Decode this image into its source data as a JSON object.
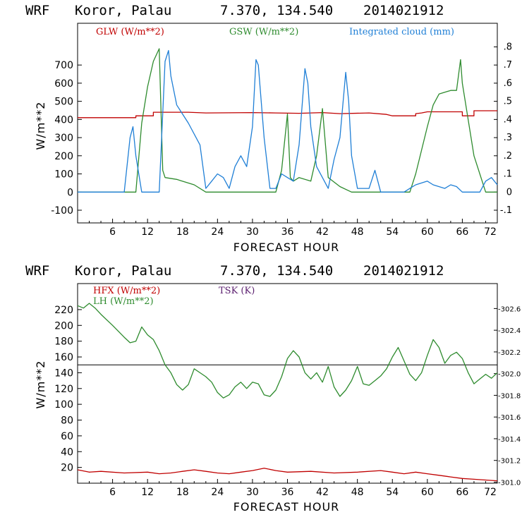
{
  "colors": {
    "red": "#c00000",
    "green": "#2e8b2e",
    "blue": "#1f7fd6",
    "purple": "#5a1e6e",
    "black": "#000000"
  },
  "chart_data": [
    {
      "type": "line",
      "header": {
        "model": "WRF",
        "location": "Koror, Palau",
        "coords": "7.370, 134.540",
        "date": "2014021912"
      },
      "xlabel": "FORECAST HOUR",
      "ylabel": "W/m**2",
      "xlim": [
        0,
        72
      ],
      "ylim": [
        -170,
        930
      ],
      "xticks": [
        "6",
        "12",
        "18",
        "24",
        "30",
        "36",
        "42",
        "48",
        "54",
        "60",
        "66",
        "72"
      ],
      "yticks": [
        "-100",
        "0",
        "100",
        "200",
        "300",
        "400",
        "500",
        "600",
        "700"
      ],
      "y2ticks": [
        "-.1",
        "0",
        ".1",
        ".2",
        ".3",
        ".4",
        ".5",
        ".6",
        ".7",
        ".8"
      ],
      "y2lim": [
        -0.17,
        0.93
      ],
      "series": [
        {
          "name": "GLW (W/m**2)",
          "color": "red",
          "axis": "left",
          "points": [
            [
              0,
              410
            ],
            [
              10,
              410
            ],
            [
              10,
              420
            ],
            [
              13,
              420
            ],
            [
              13,
              440
            ],
            [
              19,
              440
            ],
            [
              22,
              436
            ],
            [
              30,
              438
            ],
            [
              34,
              436
            ],
            [
              38,
              434
            ],
            [
              42,
              438
            ],
            [
              45,
              432
            ],
            [
              50,
              436
            ],
            [
              53,
              428
            ],
            [
              54,
              420
            ],
            [
              58,
              420
            ],
            [
              58,
              432
            ],
            [
              59,
              436
            ],
            [
              60,
              442
            ],
            [
              66,
              442
            ],
            [
              66,
              420
            ],
            [
              68,
              420
            ],
            [
              68,
              448
            ],
            [
              72,
              448
            ]
          ]
        },
        {
          "name": "GSW (W/m**2)",
          "color": "green",
          "axis": "left",
          "points": [
            [
              0,
              0
            ],
            [
              10,
              0
            ],
            [
              11,
              380
            ],
            [
              12,
              580
            ],
            [
              13,
              720
            ],
            [
              14,
              790
            ],
            [
              14.6,
              120
            ],
            [
              15,
              80
            ],
            [
              17,
              70
            ],
            [
              20,
              40
            ],
            [
              22,
              0
            ],
            [
              34,
              0
            ],
            [
              35,
              120
            ],
            [
              36,
              430
            ],
            [
              36.5,
              80
            ],
            [
              37,
              60
            ],
            [
              38,
              80
            ],
            [
              40,
              60
            ],
            [
              41,
              200
            ],
            [
              42,
              460
            ],
            [
              43,
              80
            ],
            [
              45,
              30
            ],
            [
              47,
              0
            ],
            [
              57,
              0
            ],
            [
              58,
              100
            ],
            [
              60,
              360
            ],
            [
              61,
              480
            ],
            [
              62,
              540
            ],
            [
              64,
              560
            ],
            [
              65,
              560
            ],
            [
              65.7,
              730
            ],
            [
              66,
              600
            ],
            [
              68,
              200
            ],
            [
              70,
              0
            ],
            [
              72,
              0
            ]
          ]
        },
        {
          "name": "Integrated cloud (mm)",
          "color": "blue",
          "axis": "right",
          "points": [
            [
              0,
              0
            ],
            [
              8,
              0
            ],
            [
              9,
              0.3
            ],
            [
              9.5,
              0.36
            ],
            [
              10,
              0.2
            ],
            [
              11,
              0
            ],
            [
              14,
              0
            ],
            [
              15,
              0.72
            ],
            [
              15.6,
              0.78
            ],
            [
              16,
              0.64
            ],
            [
              17,
              0.48
            ],
            [
              19,
              0.38
            ],
            [
              21,
              0.26
            ],
            [
              22,
              0.02
            ],
            [
              23,
              0.06
            ],
            [
              24,
              0.1
            ],
            [
              25,
              0.08
            ],
            [
              26,
              0.02
            ],
            [
              27,
              0.14
            ],
            [
              28,
              0.2
            ],
            [
              29,
              0.14
            ],
            [
              30,
              0.36
            ],
            [
              30.6,
              0.73
            ],
            [
              31,
              0.7
            ],
            [
              32,
              0.3
            ],
            [
              33,
              0.02
            ],
            [
              34,
              0.02
            ],
            [
              35,
              0.1
            ],
            [
              36,
              0.08
            ],
            [
              37,
              0.06
            ],
            [
              38,
              0.26
            ],
            [
              39,
              0.68
            ],
            [
              39.5,
              0.6
            ],
            [
              40,
              0.36
            ],
            [
              41,
              0.14
            ],
            [
              42,
              0.08
            ],
            [
              43,
              0.02
            ],
            [
              44,
              0.18
            ],
            [
              45,
              0.3
            ],
            [
              46,
              0.66
            ],
            [
              46.5,
              0.5
            ],
            [
              47,
              0.2
            ],
            [
              48,
              0.02
            ],
            [
              49,
              0.02
            ],
            [
              50,
              0.02
            ],
            [
              51,
              0.12
            ],
            [
              52,
              0
            ],
            [
              56,
              0
            ],
            [
              57,
              0.02
            ],
            [
              58,
              0.04
            ],
            [
              60,
              0.06
            ],
            [
              61,
              0.04
            ],
            [
              63,
              0.02
            ],
            [
              64,
              0.04
            ],
            [
              65,
              0.03
            ],
            [
              66,
              0
            ],
            [
              69,
              0
            ],
            [
              70,
              0.06
            ],
            [
              71,
              0.08
            ],
            [
              72,
              0.04
            ]
          ]
        }
      ]
    },
    {
      "type": "line",
      "header": {
        "model": "WRF",
        "location": "Koror, Palau",
        "coords": "7.370, 134.540",
        "date": "2014021912"
      },
      "xlabel": "FORECAST HOUR",
      "ylabel": "W/m**2",
      "xlim": [
        0,
        72
      ],
      "ylim": [
        0,
        253
      ],
      "xticks": [
        "6",
        "12",
        "18",
        "24",
        "30",
        "36",
        "42",
        "48",
        "54",
        "60",
        "66",
        "72"
      ],
      "yticks": [
        "20",
        "40",
        "60",
        "80",
        "100",
        "120",
        "140",
        "160",
        "180",
        "200",
        "220"
      ],
      "y2ticks": [
        "301.0",
        "301.2",
        "301.4",
        "301.6",
        "301.8",
        "302.0",
        "302.2",
        "302.4",
        "302.6"
      ],
      "y2lim": [
        300.99,
        302.83
      ],
      "series": [
        {
          "name": "HFX (W/m**2)",
          "color": "red",
          "axis": "left",
          "points": [
            [
              0,
              17
            ],
            [
              2,
              14
            ],
            [
              4,
              15
            ],
            [
              8,
              13
            ],
            [
              12,
              14
            ],
            [
              14,
              12
            ],
            [
              16,
              13
            ],
            [
              18,
              15
            ],
            [
              20,
              17
            ],
            [
              22,
              15
            ],
            [
              24,
              13
            ],
            [
              26,
              12
            ],
            [
              28,
              14
            ],
            [
              30,
              16
            ],
            [
              32,
              19
            ],
            [
              34,
              16
            ],
            [
              36,
              14
            ],
            [
              40,
              15
            ],
            [
              44,
              13
            ],
            [
              48,
              14
            ],
            [
              52,
              16
            ],
            [
              54,
              14
            ],
            [
              56,
              12
            ],
            [
              58,
              14
            ],
            [
              60,
              12
            ],
            [
              62,
              10
            ],
            [
              64,
              8
            ],
            [
              66,
              6
            ],
            [
              68,
              5
            ],
            [
              70,
              4
            ],
            [
              72,
              3
            ]
          ]
        },
        {
          "name": "LH  (W/m**2)",
          "color": "green",
          "axis": "left",
          "points": [
            [
              0,
              225
            ],
            [
              1,
              222
            ],
            [
              2,
              228
            ],
            [
              3,
              222
            ],
            [
              4,
              214
            ],
            [
              6,
              200
            ],
            [
              8,
              185
            ],
            [
              9,
              178
            ],
            [
              10,
              180
            ],
            [
              11,
              198
            ],
            [
              12,
              188
            ],
            [
              13,
              182
            ],
            [
              14,
              168
            ],
            [
              15,
              150
            ],
            [
              16,
              140
            ],
            [
              17,
              125
            ],
            [
              18,
              118
            ],
            [
              19,
              125
            ],
            [
              20,
              145
            ],
            [
              21,
              140
            ],
            [
              22,
              135
            ],
            [
              23,
              128
            ],
            [
              24,
              115
            ],
            [
              25,
              108
            ],
            [
              26,
              112
            ],
            [
              27,
              122
            ],
            [
              28,
              128
            ],
            [
              29,
              120
            ],
            [
              30,
              128
            ],
            [
              31,
              126
            ],
            [
              32,
              112
            ],
            [
              33,
              110
            ],
            [
              34,
              118
            ],
            [
              35,
              135
            ],
            [
              36,
              158
            ],
            [
              37,
              168
            ],
            [
              38,
              160
            ],
            [
              39,
              140
            ],
            [
              40,
              132
            ],
            [
              41,
              140
            ],
            [
              42,
              128
            ],
            [
              43,
              148
            ],
            [
              44,
              122
            ],
            [
              45,
              110
            ],
            [
              46,
              118
            ],
            [
              47,
              130
            ],
            [
              48,
              148
            ],
            [
              49,
              126
            ],
            [
              50,
              124
            ],
            [
              51,
              130
            ],
            [
              52,
              136
            ],
            [
              53,
              145
            ],
            [
              54,
              160
            ],
            [
              55,
              172
            ],
            [
              56,
              155
            ],
            [
              57,
              138
            ],
            [
              58,
              130
            ],
            [
              59,
              140
            ],
            [
              60,
              162
            ],
            [
              61,
              182
            ],
            [
              62,
              172
            ],
            [
              63,
              152
            ],
            [
              64,
              162
            ],
            [
              65,
              166
            ],
            [
              66,
              158
            ],
            [
              67,
              140
            ],
            [
              68,
              126
            ],
            [
              69,
              132
            ],
            [
              70,
              138
            ],
            [
              71,
              133
            ],
            [
              72,
              140
            ]
          ]
        },
        {
          "name": "TSK (K)",
          "color": "purple",
          "axis": "right",
          "points": []
        }
      ],
      "hline": 150
    }
  ]
}
